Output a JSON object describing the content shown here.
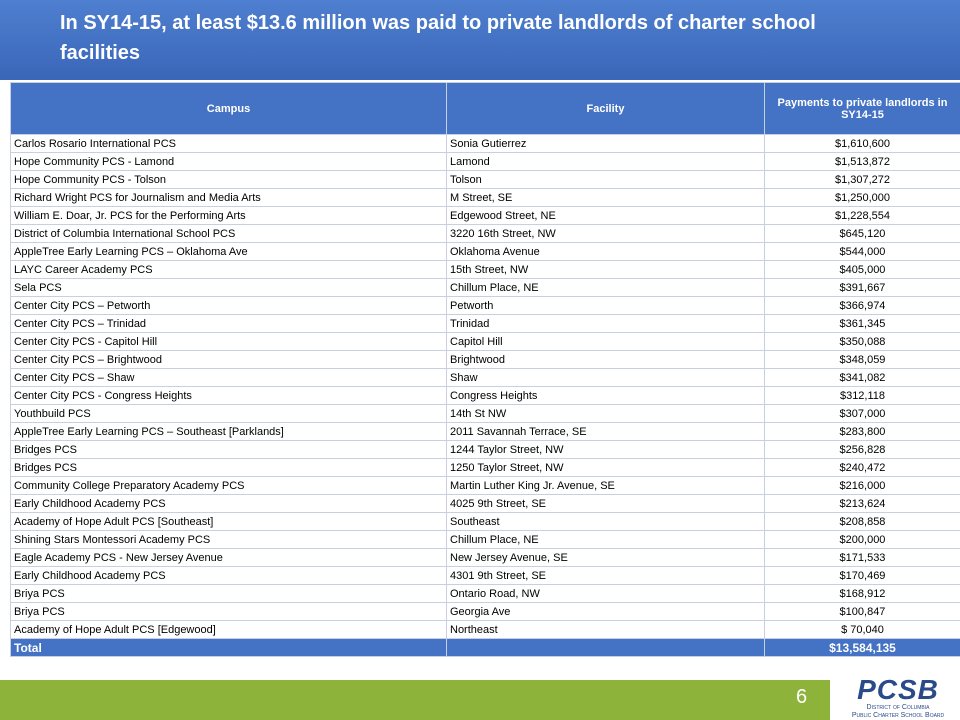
{
  "header": {
    "title": "In SY14-15, at least $13.6 million was paid to private landlords of charter school facilities"
  },
  "table": {
    "columns": [
      "Campus",
      "Facility",
      "Payments to private landlords in SY14-15"
    ],
    "rows": [
      [
        "Carlos Rosario International PCS",
        "Sonia Gutierrez",
        "$1,610,600"
      ],
      [
        "Hope Community PCS - Lamond",
        "Lamond",
        "$1,513,872"
      ],
      [
        "Hope Community PCS - Tolson",
        "Tolson",
        "$1,307,272"
      ],
      [
        "Richard Wright PCS for Journalism and Media Arts",
        "M Street, SE",
        "$1,250,000"
      ],
      [
        "William E. Doar, Jr. PCS for the Performing Arts",
        "Edgewood Street, NE",
        "$1,228,554"
      ],
      [
        "District of Columbia International School PCS",
        "3220 16th Street, NW",
        "$645,120"
      ],
      [
        "AppleTree Early Learning PCS – Oklahoma Ave",
        "Oklahoma Avenue",
        "$544,000"
      ],
      [
        "LAYC Career Academy PCS",
        "15th Street, NW",
        "$405,000"
      ],
      [
        "Sela PCS",
        "Chillum Place, NE",
        "$391,667"
      ],
      [
        "Center City PCS – Petworth",
        "Petworth",
        "$366,974"
      ],
      [
        "Center City PCS – Trinidad",
        "Trinidad",
        "$361,345"
      ],
      [
        "Center City PCS - Capitol Hill",
        "Capitol Hill",
        "$350,088"
      ],
      [
        "Center City PCS – Brightwood",
        "Brightwood",
        "$348,059"
      ],
      [
        "Center City PCS – Shaw",
        "Shaw",
        "$341,082"
      ],
      [
        "Center City PCS - Congress Heights",
        "Congress Heights",
        "$312,118"
      ],
      [
        "Youthbuild PCS",
        "14th St NW",
        "$307,000"
      ],
      [
        "AppleTree Early Learning PCS – Southeast [Parklands]",
        "2011 Savannah Terrace, SE",
        "$283,800"
      ],
      [
        "Bridges PCS",
        "1244 Taylor Street, NW",
        "$256,828"
      ],
      [
        "Bridges PCS",
        "1250 Taylor Street, NW",
        "$240,472"
      ],
      [
        "Community College Preparatory Academy PCS",
        "Martin Luther King Jr. Avenue, SE",
        "$216,000"
      ],
      [
        "Early Childhood Academy PCS",
        "4025 9th Street, SE",
        "$213,624"
      ],
      [
        "Academy of Hope Adult PCS [Southeast]",
        "Southeast",
        "$208,858"
      ],
      [
        "Shining Stars Montessori Academy PCS",
        "Chillum Place, NE",
        "$200,000"
      ],
      [
        "Eagle Academy PCS - New Jersey Avenue",
        "New Jersey Avenue, SE",
        "$171,533"
      ],
      [
        "Early Childhood Academy PCS",
        "4301 9th Street, SE",
        "$170,469"
      ],
      [
        "Briya PCS",
        "Ontario Road, NW",
        "$168,912"
      ],
      [
        "Briya PCS",
        "Georgia Ave",
        "$100,847"
      ],
      [
        "Academy of Hope Adult PCS [Edgewood]",
        "Northeast",
        "$ 70,040"
      ]
    ],
    "total": {
      "label": "Total",
      "value": "$13,584,135"
    }
  },
  "footer": {
    "page_number": "6",
    "logo": "PCSB",
    "logo_subtitle": [
      "District of Columbia",
      "Public Charter School Board"
    ]
  }
}
